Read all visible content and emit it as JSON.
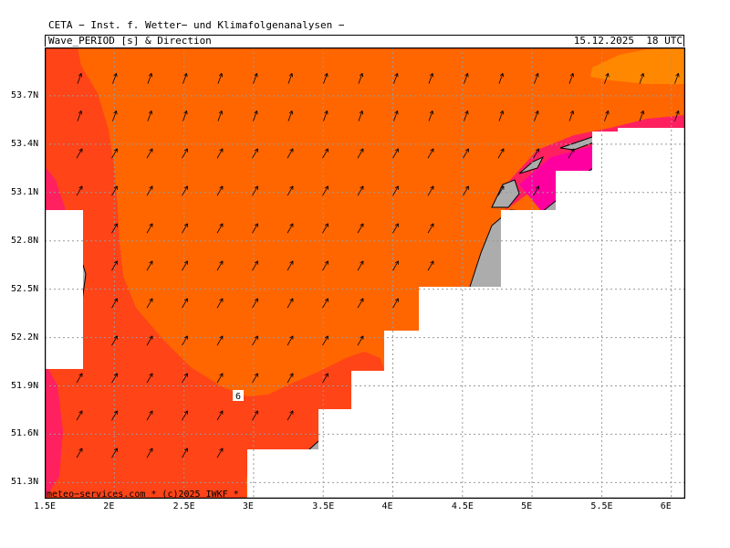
{
  "header": {
    "line1": "CETA − Inst. f. Wetter− und Klimafolgenanalysen −",
    "parameter": "Wave_PERIOD [s] & Direction",
    "valid_time": "15.12.2025  18 UTC"
  },
  "map": {
    "lon_range": [
      1.5,
      6.1
    ],
    "lat_range": [
      51.2,
      54.0
    ],
    "lat_ticks": [
      "53.7N",
      "53.4N",
      "53.1N",
      "52.8N",
      "52.5N",
      "52.2N",
      "51.9N",
      "51.6N",
      "51.3N"
    ],
    "lon_ticks": [
      "1.5E",
      "2E",
      "2.5E",
      "3E",
      "3.5E",
      "4E",
      "4.5E",
      "5E",
      "5.5E",
      "6E"
    ],
    "contour_label": "6",
    "credit": "meteo−services.com * (c)2025 IWKF *",
    "colors": {
      "land": "#acacac",
      "sea_period_6_7": "#ff6600",
      "sea_period_7_8": "#ff8800",
      "sea_period_5_6": "#ff4418",
      "sea_period_4_5": "#ff2060",
      "sea_period_3_4": "#ff00a0",
      "rivers": "#3355ee",
      "grid": "#999999"
    },
    "wave_direction": "mostly toward north-east"
  }
}
